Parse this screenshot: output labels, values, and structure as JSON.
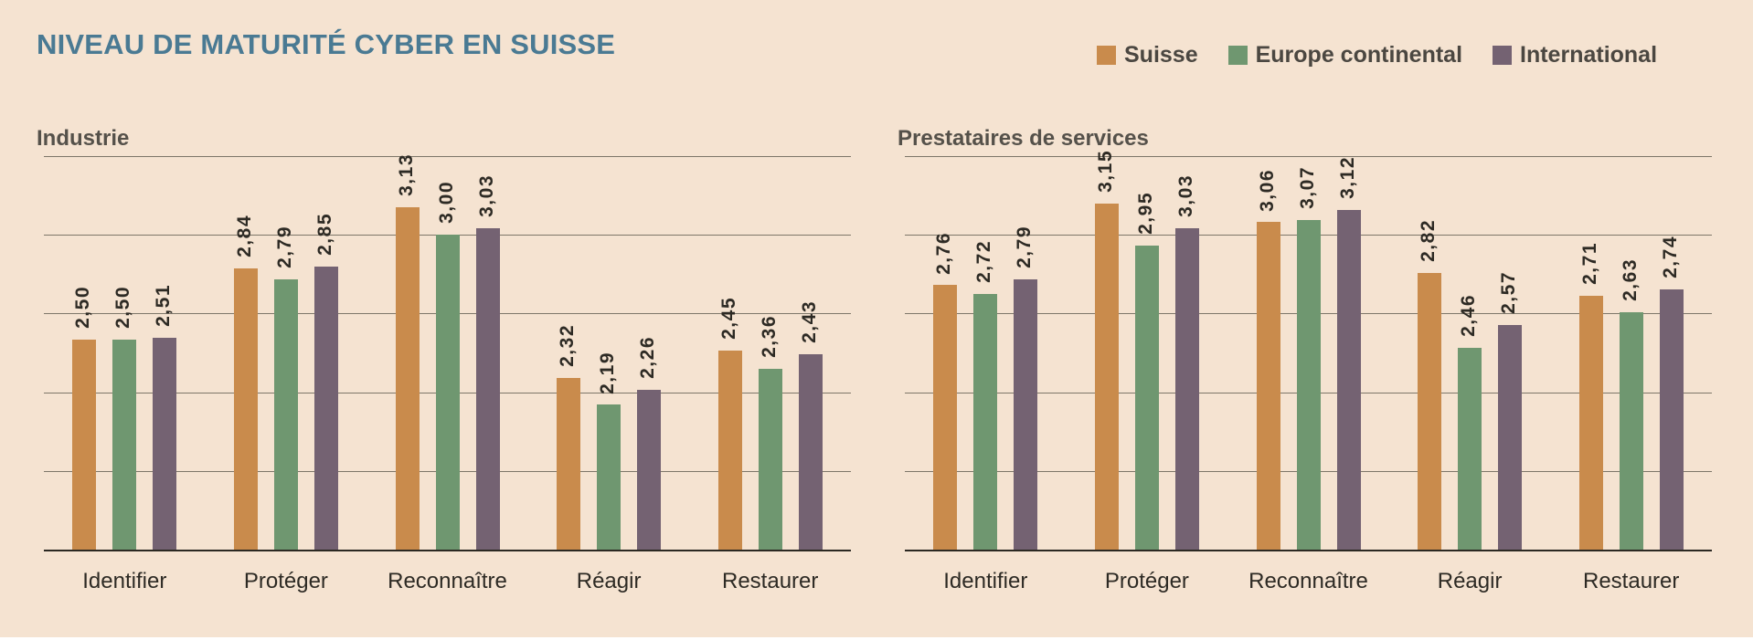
{
  "page": {
    "title": "NIVEAU DE MATURITÉ CYBER EN SUISSE",
    "background_color": "#f5e3d1",
    "title_color": "#4a7a93"
  },
  "legend": {
    "position": "top-right",
    "items": [
      {
        "label": "Suisse",
        "color": "#c98b4c"
      },
      {
        "label": "Europe continental",
        "color": "#6f9770"
      },
      {
        "label": "International",
        "color": "#746272"
      }
    ]
  },
  "chart_data": [
    {
      "type": "bar",
      "title": "Industrie",
      "categories": [
        "Identifier",
        "Protéger",
        "Reconnaître",
        "Réagir",
        "Restaurer"
      ],
      "series": [
        {
          "name": "Suisse",
          "color": "#c98b4c",
          "values": [
            2.5,
            2.84,
            3.13,
            2.32,
            2.45
          ]
        },
        {
          "name": "Europe continental",
          "color": "#6f9770",
          "values": [
            2.5,
            2.79,
            3.0,
            2.19,
            2.36
          ]
        },
        {
          "name": "International",
          "color": "#746272",
          "values": [
            2.51,
            2.85,
            3.03,
            2.26,
            2.43
          ]
        }
      ],
      "value_label_format": "comma-decimal-2",
      "xlabel": "",
      "ylabel": "",
      "ylim": [
        1.5,
        3.375
      ],
      "gridline_values": [
        3.375,
        3.0,
        2.625,
        2.25,
        1.875
      ],
      "grid": "on",
      "legend_position": "top-right-shared"
    },
    {
      "type": "bar",
      "title": "Prestataires de services",
      "categories": [
        "Identifier",
        "Protéger",
        "Reconnaître",
        "Réagir",
        "Restaurer"
      ],
      "series": [
        {
          "name": "Suisse",
          "color": "#c98b4c",
          "values": [
            2.76,
            3.15,
            3.06,
            2.82,
            2.71
          ]
        },
        {
          "name": "Europe continental",
          "color": "#6f9770",
          "values": [
            2.72,
            2.95,
            3.07,
            2.46,
            2.63
          ]
        },
        {
          "name": "International",
          "color": "#746272",
          "values": [
            2.79,
            3.03,
            3.12,
            2.57,
            2.74
          ]
        }
      ],
      "value_label_format": "comma-decimal-2",
      "xlabel": "",
      "ylabel": "",
      "ylim": [
        1.5,
        3.375
      ],
      "gridline_values": [
        3.375,
        3.0,
        2.625,
        2.25,
        1.875
      ],
      "grid": "on",
      "legend_position": "top-right-shared"
    }
  ]
}
